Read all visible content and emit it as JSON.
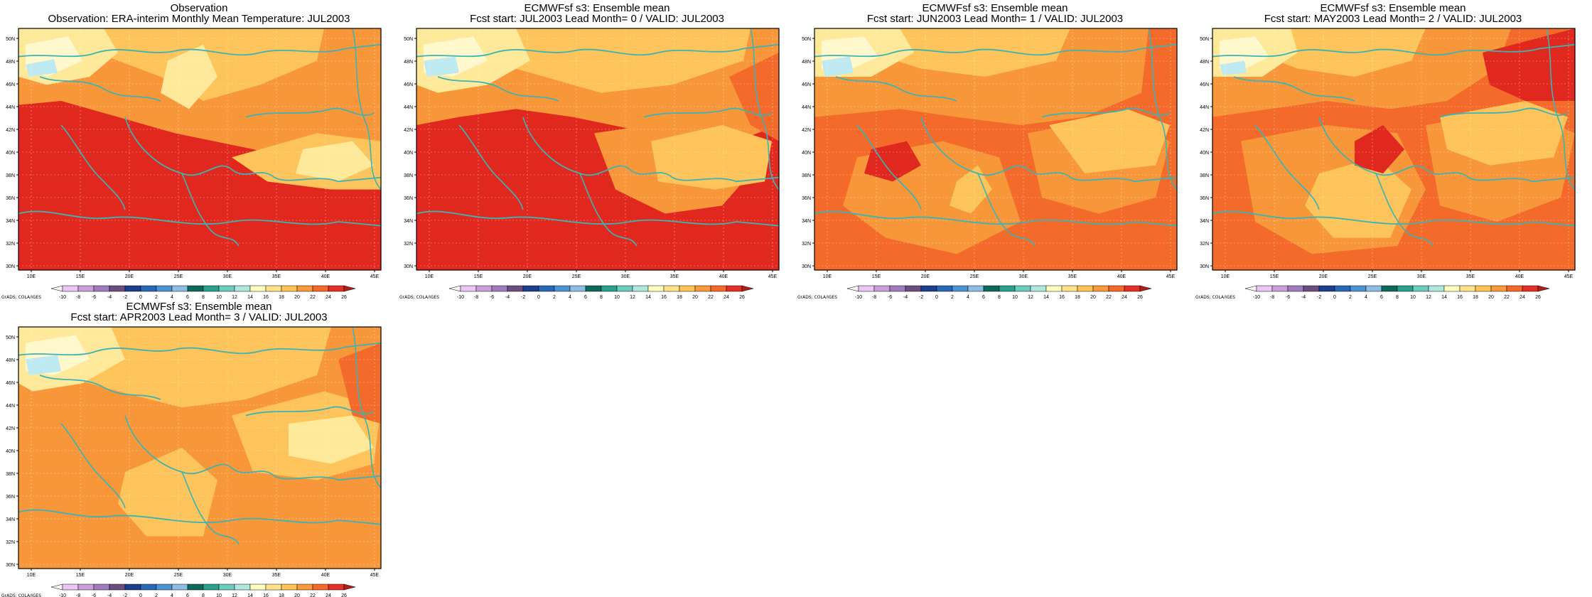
{
  "colorbar": {
    "labels": [
      "-10",
      "-8",
      "-6",
      "-4",
      "-2",
      "0",
      "2",
      "4",
      "6",
      "8",
      "10",
      "12",
      "14",
      "16",
      "18",
      "20",
      "22",
      "24",
      "26"
    ],
    "colors": [
      "#f4f4f4",
      "#e8c8f0",
      "#c89fd8",
      "#a07bbc",
      "#6a4e7e",
      "#1c3f8a",
      "#2768b6",
      "#4f92d0",
      "#8bbde6",
      "#0c6a5a",
      "#2e9e8c",
      "#6ccbbc",
      "#aee6dc",
      "#ffffbe",
      "#ffe38a",
      "#ffc45a",
      "#fb9a3a",
      "#f36b2a",
      "#e03228",
      "#b71c1c"
    ]
  },
  "credit": "GrADS: COLA/IGES",
  "lon_ticks": [
    "10E",
    "15E",
    "20E",
    "25E",
    "30E",
    "35E",
    "40E",
    "45E"
  ],
  "lat_ticks": [
    "30N",
    "32N",
    "34N",
    "36N",
    "38N",
    "40N",
    "42N",
    "44N",
    "46N",
    "48N",
    "50N"
  ],
  "palette": {
    "red": "#e0281e",
    "red_orange": "#f46a2a",
    "orange": "#f8963a",
    "light_orange": "#fcc45a",
    "yellow": "#fee89a",
    "pale_yellow": "#fff8cc",
    "light_blue": "#bfe9f0",
    "coast": "#3cb4b4"
  },
  "panels": [
    {
      "title1": "Observation",
      "title2": "Observation: ERA-interim Monthly Mean Temperature: JUL2003"
    },
    {
      "title1": "ECMWFsf s3: Ensemble mean",
      "title2": "Fcst start: JUL2003   Lead Month= 0 / VALID: JUL2003"
    },
    {
      "title1": "ECMWFsf s3: Ensemble mean",
      "title2": "Fcst start: JUN2003   Lead Month= 1 / VALID: JUL2003"
    },
    {
      "title1": "ECMWFsf s3: Ensemble mean",
      "title2": "Fcst start: MAY2003   Lead Month= 2 / VALID: JUL2003"
    },
    {
      "title1": "ECMWFsf s3: Ensemble mean",
      "title2": "Fcst start: APR2003   Lead Month= 3 / VALID: JUL2003"
    }
  ]
}
